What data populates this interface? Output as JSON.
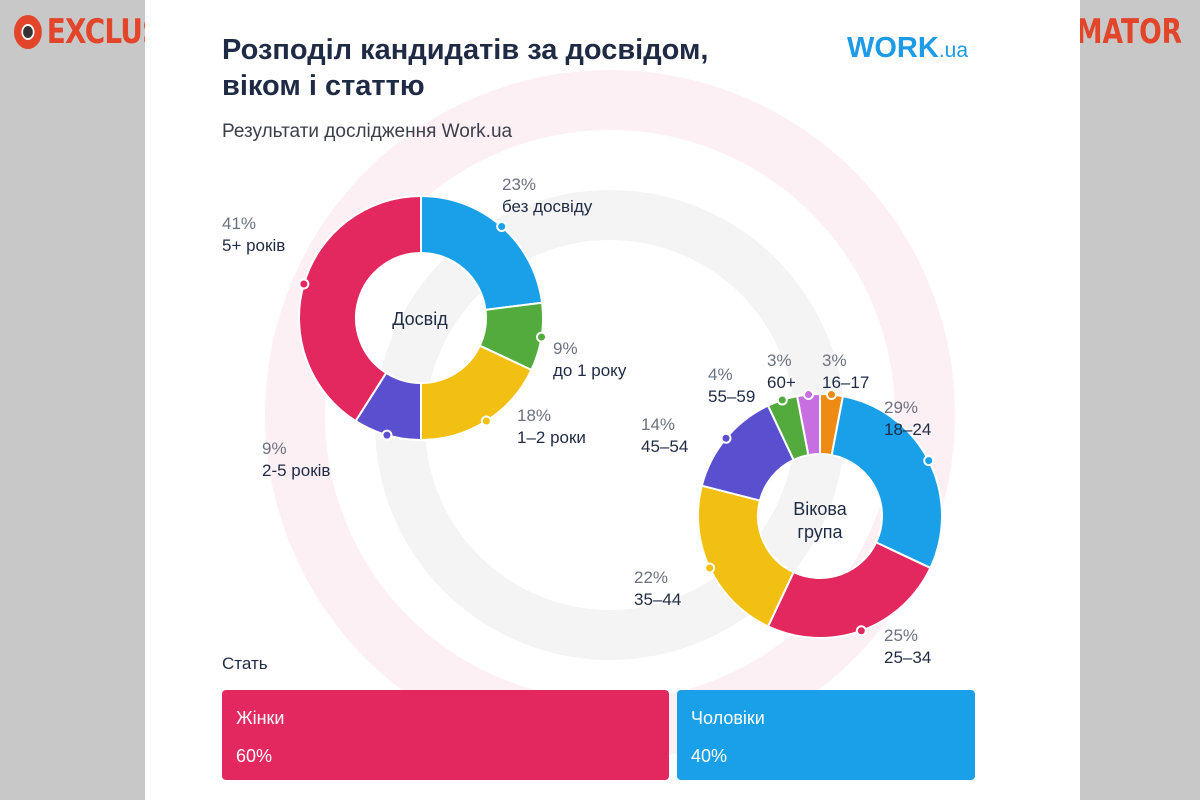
{
  "branding": {
    "left": "EXCLUSIVE",
    "right": "INFORMATOR",
    "logo_main": "WORK",
    "logo_suffix": ".ua"
  },
  "title": "Розподіл кандидатів за досвідом, віком і статтю",
  "subtitle": "Результати дослідження Work.ua",
  "colors": {
    "pink": "#e2285e",
    "blue": "#1aa0e8",
    "green": "#52ab3c",
    "yellow": "#f2c012",
    "purple": "#5a4fcf",
    "violet": "#c76ee0",
    "orange": "#ef8a12"
  },
  "chart_data": [
    {
      "type": "pie",
      "variant": "donut",
      "center_label": "Досвід",
      "slices": [
        {
          "label": "без досвіду",
          "value": 23,
          "display": "23%",
          "color": "#1aa0e8"
        },
        {
          "label": "до 1 року",
          "value": 9,
          "display": "9%",
          "color": "#52ab3c"
        },
        {
          "label": "1–2 роки",
          "value": 18,
          "display": "18%",
          "color": "#f2c012"
        },
        {
          "label": "2-5 років",
          "value": 9,
          "display": "9%",
          "color": "#5a4fcf"
        },
        {
          "label": "5+ років",
          "value": 41,
          "display": "41%",
          "color": "#e2285e"
        }
      ]
    },
    {
      "type": "pie",
      "variant": "donut",
      "center_label": "Вікова група",
      "slices": [
        {
          "label": "18–24",
          "value": 29,
          "display": "29%",
          "color": "#1aa0e8"
        },
        {
          "label": "25–34",
          "value": 25,
          "display": "25%",
          "color": "#e2285e"
        },
        {
          "label": "35–44",
          "value": 22,
          "display": "22%",
          "color": "#f2c012"
        },
        {
          "label": "45–54",
          "value": 14,
          "display": "14%",
          "color": "#5a4fcf"
        },
        {
          "label": "55–59",
          "value": 4,
          "display": "4%",
          "color": "#52ab3c"
        },
        {
          "label": "60+",
          "value": 3,
          "display": "3%",
          "color": "#c76ee0"
        },
        {
          "label": "16–17",
          "value": 3,
          "display": "3%",
          "color": "#ef8a12"
        }
      ]
    },
    {
      "type": "bar",
      "variant": "stacked-100",
      "title": "Стать",
      "categories": [
        "Жінки",
        "Чоловіки"
      ],
      "values": [
        60,
        40
      ],
      "display": [
        "60%",
        "40%"
      ],
      "colors": [
        "#e2285e",
        "#1aa0e8"
      ]
    }
  ]
}
